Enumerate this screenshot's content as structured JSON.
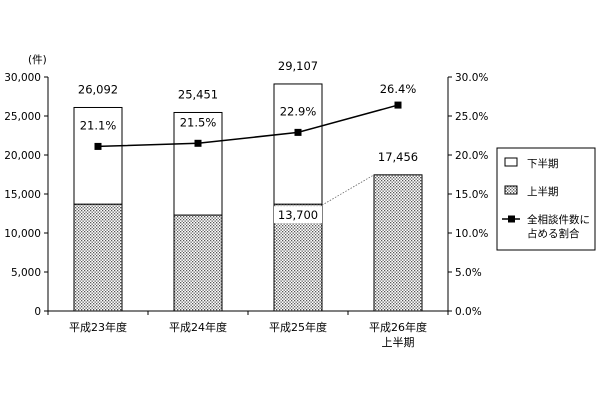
{
  "chart_data": {
    "type": "bar",
    "stacked": true,
    "categories": [
      "平成23年度",
      "平成24年度",
      "平成25年度",
      [
        "平成26年度",
        "上半期"
      ]
    ],
    "series": [
      {
        "name": "上半期",
        "values": [
          13700,
          12300,
          13700,
          17456
        ],
        "pattern": "dots",
        "color": "#d9d9d9"
      },
      {
        "name": "下半期",
        "values": [
          12392,
          13151,
          15407,
          null
        ],
        "pattern": "none",
        "color": "#ffffff"
      }
    ],
    "totals": [
      26092,
      25451,
      29107,
      17456
    ],
    "total_labels": [
      "26,092",
      "25,451",
      "29,107",
      "17,456"
    ],
    "inner_label": {
      "category_index": 2,
      "text": "13,700"
    },
    "line_series": {
      "name": "全相談件数に占める割合",
      "values": [
        21.1,
        21.5,
        22.9,
        26.4
      ],
      "labels": [
        "21.1%",
        "21.5%",
        "22.9%",
        "26.4%"
      ],
      "marker": "square",
      "color": "#000000"
    },
    "y_left": {
      "unit": "(件)",
      "min": 0,
      "max": 30000,
      "ticks": [
        0,
        5000,
        10000,
        15000,
        20000,
        25000,
        30000
      ],
      "tick_labels": [
        "0",
        "5,000",
        "10,000",
        "15,000",
        "20,000",
        "25,000",
        "30,000"
      ]
    },
    "y_right": {
      "min": 0,
      "max": 30,
      "ticks": [
        0,
        5,
        10,
        15,
        20,
        25,
        30
      ],
      "tick_labels": [
        "0.0%",
        "5.0%",
        "10.0%",
        "15.0%",
        "20.0%",
        "25.0%",
        "30.0%"
      ]
    },
    "legend": {
      "position": "right",
      "items": [
        {
          "label": "下半期",
          "kind": "box-plain"
        },
        {
          "label": "上半期",
          "kind": "box-dots"
        },
        {
          "label": [
            "全相談件数に",
            "占める割合"
          ],
          "kind": "line-square"
        }
      ]
    },
    "grid": false
  }
}
